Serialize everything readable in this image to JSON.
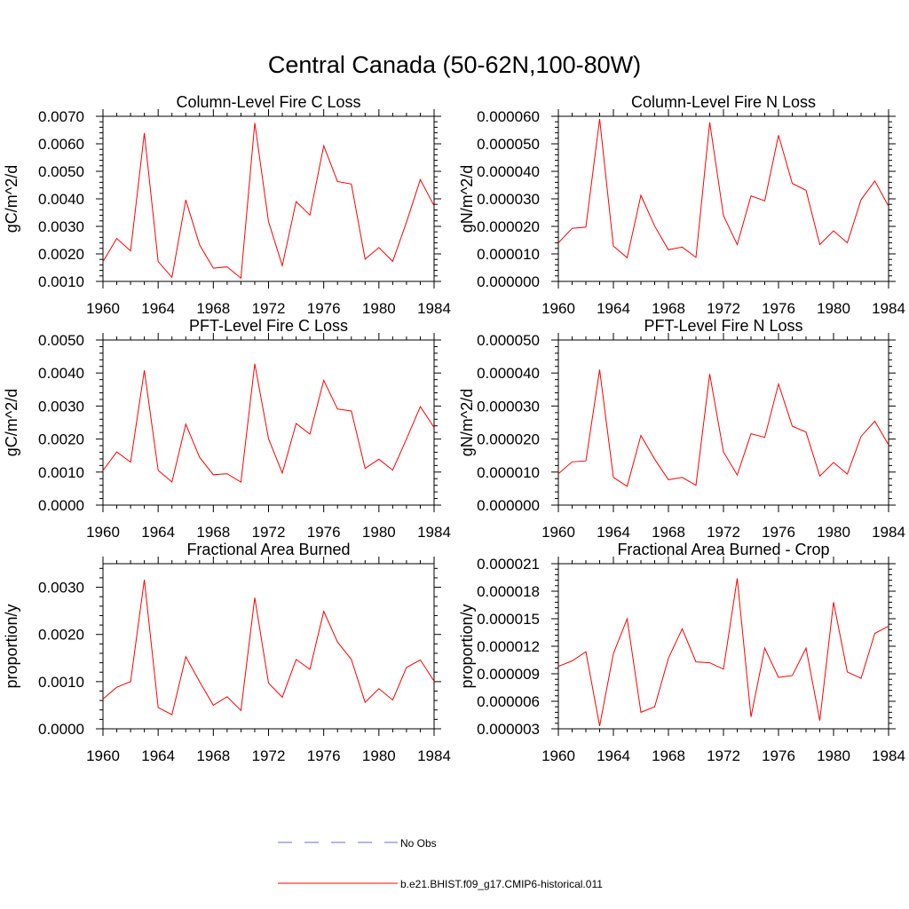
{
  "figure_title": "Central Canada (50-62N,100-80W)",
  "colors": {
    "model_line": "#ff0000",
    "obs_line": "#6a6ad6",
    "axes": "#000000"
  },
  "legend": {
    "entries": [
      {
        "label": "No Obs",
        "style": "dashed",
        "color": "#6a6ad6"
      },
      {
        "label": "b.e21.BHIST.f09_g17.CMIP6-historical.011",
        "style": "solid",
        "color": "#ff0000"
      }
    ]
  },
  "chart_data": [
    {
      "type": "line",
      "title": "Column-Level Fire C Loss",
      "ylabel": "gC/m^2/d",
      "xlabel": "",
      "xlim": [
        1960,
        1984
      ],
      "ylim": [
        0.001,
        0.007
      ],
      "x_ticks": [
        1960,
        1964,
        1968,
        1972,
        1976,
        1980,
        1984
      ],
      "y_ticks": [
        "0.0010",
        "0.0020",
        "0.0030",
        "0.0040",
        "0.0050",
        "0.0060",
        "0.0070"
      ],
      "y_tick_values": [
        0.001,
        0.002,
        0.003,
        0.004,
        0.005,
        0.006,
        0.007
      ],
      "x": [
        1960,
        1961,
        1962,
        1963,
        1964,
        1965,
        1966,
        1967,
        1968,
        1969,
        1970,
        1971,
        1972,
        1973,
        1974,
        1975,
        1976,
        1977,
        1978,
        1979,
        1980,
        1981,
        1982,
        1983,
        1984
      ],
      "series": [
        {
          "name": "b.e21.BHIST.f09_g17.CMIP6-historical.011",
          "values": [
            0.00172,
            0.00256,
            0.00211,
            0.00639,
            0.00172,
            0.00115,
            0.00396,
            0.00233,
            0.00148,
            0.00153,
            0.00112,
            0.00676,
            0.00317,
            0.00157,
            0.0039,
            0.00341,
            0.00593,
            0.00463,
            0.00454,
            0.00181,
            0.00223,
            0.00173,
            0.00315,
            0.0047,
            0.00375
          ]
        }
      ]
    },
    {
      "type": "line",
      "title": "Column-Level Fire N Loss",
      "ylabel": "gN/m^2/d",
      "xlabel": "",
      "xlim": [
        1960,
        1984
      ],
      "ylim": [
        0,
        6e-05
      ],
      "x_ticks": [
        1960,
        1964,
        1968,
        1972,
        1976,
        1980,
        1984
      ],
      "y_ticks": [
        "0.000000",
        "0.000010",
        "0.000020",
        "0.000030",
        "0.000040",
        "0.000050",
        "0.000060"
      ],
      "y_tick_values": [
        0,
        1e-05,
        2e-05,
        3e-05,
        4e-05,
        5e-05,
        6e-05
      ],
      "x": [
        1960,
        1961,
        1962,
        1963,
        1964,
        1965,
        1966,
        1967,
        1968,
        1969,
        1970,
        1971,
        1972,
        1973,
        1974,
        1975,
        1976,
        1977,
        1978,
        1979,
        1980,
        1981,
        1982,
        1983,
        1984
      ],
      "series": [
        {
          "name": "b.e21.BHIST.f09_g17.CMIP6-historical.011",
          "values": [
            1.4e-05,
            1.93e-05,
            1.97e-05,
            5.9e-05,
            1.28e-05,
            8.6e-06,
            3.13e-05,
            2.01e-05,
            1.15e-05,
            1.25e-05,
            8.7e-06,
            5.78e-05,
            2.39e-05,
            1.34e-05,
            3.11e-05,
            2.93e-05,
            5.31e-05,
            3.56e-05,
            3.31e-05,
            1.34e-05,
            1.84e-05,
            1.4e-05,
            2.97e-05,
            3.65e-05,
            2.73e-05
          ]
        }
      ]
    },
    {
      "type": "line",
      "title": "PFT-Level Fire C Loss",
      "ylabel": "gC/m^2/d",
      "xlabel": "",
      "xlim": [
        1960,
        1984
      ],
      "ylim": [
        0,
        0.005
      ],
      "x_ticks": [
        1960,
        1964,
        1968,
        1972,
        1976,
        1980,
        1984
      ],
      "y_ticks": [
        "0.0000",
        "0.0010",
        "0.0020",
        "0.0030",
        "0.0040",
        "0.0050"
      ],
      "y_tick_values": [
        0,
        0.001,
        0.002,
        0.003,
        0.004,
        0.005
      ],
      "x": [
        1960,
        1961,
        1962,
        1963,
        1964,
        1965,
        1966,
        1967,
        1968,
        1969,
        1970,
        1971,
        1972,
        1973,
        1974,
        1975,
        1976,
        1977,
        1978,
        1979,
        1980,
        1981,
        1982,
        1983,
        1984
      ],
      "series": [
        {
          "name": "b.e21.BHIST.f09_g17.CMIP6-historical.011",
          "values": [
            0.00105,
            0.00161,
            0.0013,
            0.00408,
            0.00105,
            0.0007,
            0.00245,
            0.00145,
            0.00092,
            0.00095,
            0.0007,
            0.00428,
            0.00201,
            0.00097,
            0.00247,
            0.00215,
            0.00378,
            0.00291,
            0.00285,
            0.00111,
            0.00139,
            0.00106,
            0.002,
            0.00298,
            0.00235
          ]
        }
      ]
    },
    {
      "type": "line",
      "title": "PFT-Level Fire N Loss",
      "ylabel": "gN/m^2/d",
      "xlabel": "",
      "xlim": [
        1960,
        1984
      ],
      "ylim": [
        0,
        5e-05
      ],
      "x_ticks": [
        1960,
        1964,
        1968,
        1972,
        1976,
        1980,
        1984
      ],
      "y_ticks": [
        "0.000000",
        "0.000010",
        "0.000020",
        "0.000030",
        "0.000040",
        "0.000050"
      ],
      "y_tick_values": [
        0,
        1e-05,
        2e-05,
        3e-05,
        4e-05,
        5e-05
      ],
      "x": [
        1960,
        1961,
        1962,
        1963,
        1964,
        1965,
        1966,
        1967,
        1968,
        1969,
        1970,
        1971,
        1972,
        1973,
        1974,
        1975,
        1976,
        1977,
        1978,
        1979,
        1980,
        1981,
        1982,
        1983,
        1984
      ],
      "series": [
        {
          "name": "b.e21.BHIST.f09_g17.CMIP6-historical.011",
          "values": [
            9.5e-06,
            1.31e-05,
            1.34e-05,
            4.1e-05,
            8.4e-06,
            5.7e-06,
            2.11e-05,
            1.39e-05,
            7.7e-06,
            8.4e-06,
            6e-06,
            3.97e-05,
            1.61e-05,
            9.1e-06,
            2.16e-05,
            2.05e-05,
            3.67e-05,
            2.39e-05,
            2.21e-05,
            8.8e-06,
            1.29e-05,
            9.4e-06,
            2.08e-05,
            2.54e-05,
            1.82e-05
          ]
        }
      ]
    },
    {
      "type": "line",
      "title": "Fractional Area Burned",
      "ylabel": "proportion/y",
      "xlabel": "",
      "xlim": [
        1960,
        1984
      ],
      "ylim": [
        0,
        0.0035
      ],
      "x_ticks": [
        1960,
        1964,
        1968,
        1972,
        1976,
        1980,
        1984
      ],
      "y_ticks": [
        "0.0000",
        "0.0010",
        "0.0020",
        "0.0030"
      ],
      "y_tick_values": [
        0,
        0.001,
        0.002,
        0.003
      ],
      "x": [
        1960,
        1961,
        1962,
        1963,
        1964,
        1965,
        1966,
        1967,
        1968,
        1969,
        1970,
        1971,
        1972,
        1973,
        1974,
        1975,
        1976,
        1977,
        1978,
        1979,
        1980,
        1981,
        1982,
        1983,
        1984
      ],
      "series": [
        {
          "name": "b.e21.BHIST.f09_g17.CMIP6-historical.011",
          "values": [
            0.00063,
            0.00088,
            0.001,
            0.00316,
            0.00045,
            0.0003,
            0.00153,
            0.001,
            0.0005,
            0.00068,
            0.00039,
            0.00278,
            0.00097,
            0.00067,
            0.00147,
            0.00126,
            0.00249,
            0.00184,
            0.00147,
            0.00056,
            0.00085,
            0.00061,
            0.0013,
            0.00146,
            0.00101
          ]
        }
      ]
    },
    {
      "type": "line",
      "title": "Fractional Area Burned - Crop",
      "ylabel": "proportion/y",
      "xlabel": "",
      "xlim": [
        1960,
        1984
      ],
      "ylim": [
        3e-06,
        2.1e-05
      ],
      "x_ticks": [
        1960,
        1964,
        1968,
        1972,
        1976,
        1980,
        1984
      ],
      "y_ticks": [
        "0.000003",
        "0.000006",
        "0.000009",
        "0.000012",
        "0.000015",
        "0.000018",
        "0.000021"
      ],
      "y_tick_values": [
        3e-06,
        6e-06,
        9e-06,
        1.2e-05,
        1.5e-05,
        1.8e-05,
        2.1e-05
      ],
      "x": [
        1960,
        1961,
        1962,
        1963,
        1964,
        1965,
        1966,
        1967,
        1968,
        1969,
        1970,
        1971,
        1972,
        1973,
        1974,
        1975,
        1976,
        1977,
        1978,
        1979,
        1980,
        1981,
        1982,
        1983,
        1984
      ],
      "series": [
        {
          "name": "b.e21.BHIST.f09_g17.CMIP6-historical.011",
          "values": [
            9.8e-06,
            1.04e-05,
            1.14e-05,
            3.3e-06,
            1.12e-05,
            1.5e-05,
            4.8e-06,
            5.4e-06,
            1.07e-05,
            1.39e-05,
            1.03e-05,
            1.02e-05,
            9.5e-06,
            1.94e-05,
            4.3e-06,
            1.18e-05,
            8.6e-06,
            8.8e-06,
            1.18e-05,
            3.9e-06,
            1.68e-05,
            9.2e-06,
            8.5e-06,
            1.34e-05,
            1.42e-05
          ]
        }
      ]
    }
  ]
}
